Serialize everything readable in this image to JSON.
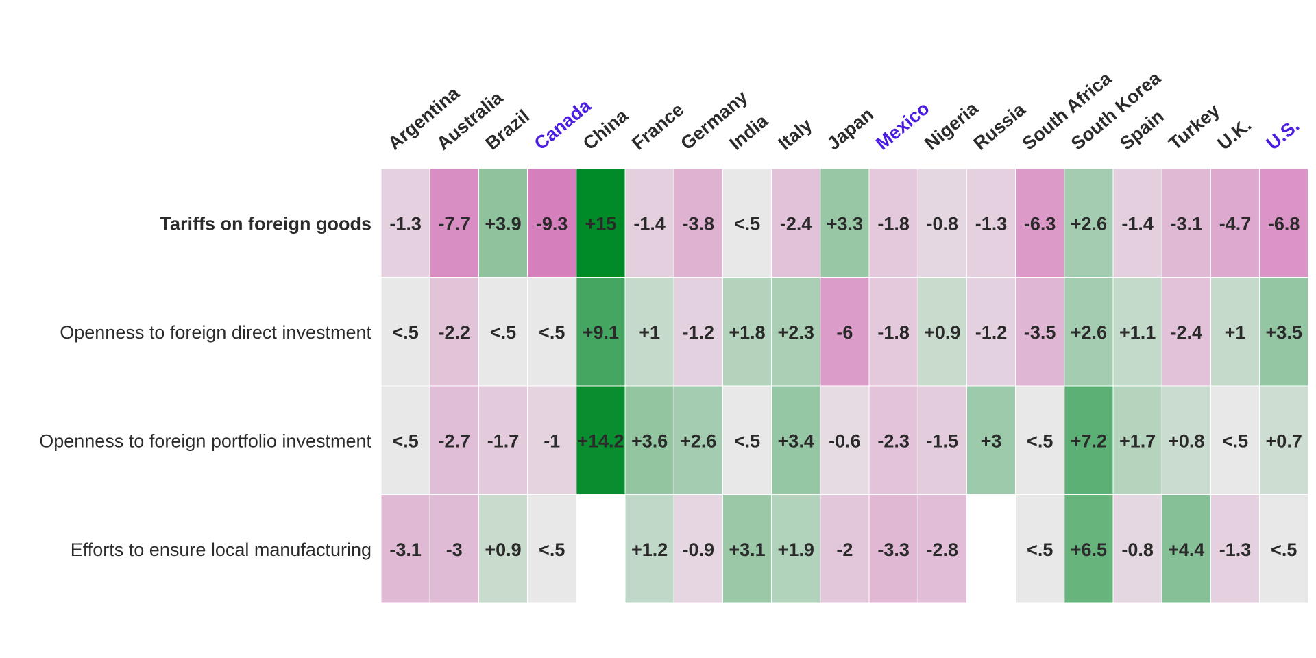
{
  "chart_data": {
    "type": "heatmap",
    "columns": [
      {
        "label": "Argentina",
        "highlight": false
      },
      {
        "label": "Australia",
        "highlight": false
      },
      {
        "label": "Brazil",
        "highlight": false
      },
      {
        "label": "Canada",
        "highlight": true
      },
      {
        "label": "China",
        "highlight": false
      },
      {
        "label": "France",
        "highlight": false
      },
      {
        "label": "Germany",
        "highlight": false
      },
      {
        "label": "India",
        "highlight": false
      },
      {
        "label": "Italy",
        "highlight": false
      },
      {
        "label": "Japan",
        "highlight": false
      },
      {
        "label": "Mexico",
        "highlight": true
      },
      {
        "label": "Nigeria",
        "highlight": false
      },
      {
        "label": "Russia",
        "highlight": false
      },
      {
        "label": "South Africa",
        "highlight": false
      },
      {
        "label": "South Korea",
        "highlight": false
      },
      {
        "label": "Spain",
        "highlight": false
      },
      {
        "label": "Turkey",
        "highlight": false
      },
      {
        "label": "U.K.",
        "highlight": false
      },
      {
        "label": "U.S.",
        "highlight": true
      }
    ],
    "rows": [
      {
        "label": "Tariffs on foreign goods",
        "bold": true,
        "cells": [
          "-1.3",
          "-7.7",
          "+3.9",
          "-9.3",
          "+15",
          "-1.4",
          "-3.8",
          "<.5",
          "-2.4",
          "+3.3",
          "-1.8",
          "-0.8",
          "-1.3",
          "-6.3",
          "+2.6",
          "-1.4",
          "-3.1",
          "-4.7",
          "-6.8"
        ]
      },
      {
        "label": "Openness to foreign direct investment",
        "bold": false,
        "cells": [
          "<.5",
          "-2.2",
          "<.5",
          "<.5",
          "+9.1",
          "+1",
          "-1.2",
          "+1.8",
          "+2.3",
          "-6",
          "-1.8",
          "+0.9",
          "-1.2",
          "-3.5",
          "+2.6",
          "+1.1",
          "-2.4",
          "+1",
          "+3.5"
        ]
      },
      {
        "label": "Openness to foreign portfolio investment",
        "bold": false,
        "cells": [
          "<.5",
          "-2.7",
          "-1.7",
          "-1",
          "+14.2",
          "+3.6",
          "+2.6",
          "<.5",
          "+3.4",
          "-0.6",
          "-2.3",
          "-1.5",
          "+3",
          "<.5",
          "+7.2",
          "+1.7",
          "+0.8",
          "<.5",
          "+0.7"
        ]
      },
      {
        "label": "Efforts to ensure local manufacturing",
        "bold": false,
        "cells": [
          "-3.1",
          "-3",
          "+0.9",
          "<.5",
          "",
          "+1.2",
          "-0.9",
          "+3.1",
          "+1.9",
          "-2",
          "-3.3",
          "-2.8",
          "",
          "<.5",
          "+6.5",
          "-0.8",
          "+4.4",
          "-1.3",
          "<.5"
        ]
      }
    ],
    "colors": {
      "negative": "#d67fbd",
      "neutral": "#e8e8e8",
      "positive": "#008a28",
      "label_text": "#2b2b2b",
      "highlight_label": "#4a1de0"
    }
  }
}
